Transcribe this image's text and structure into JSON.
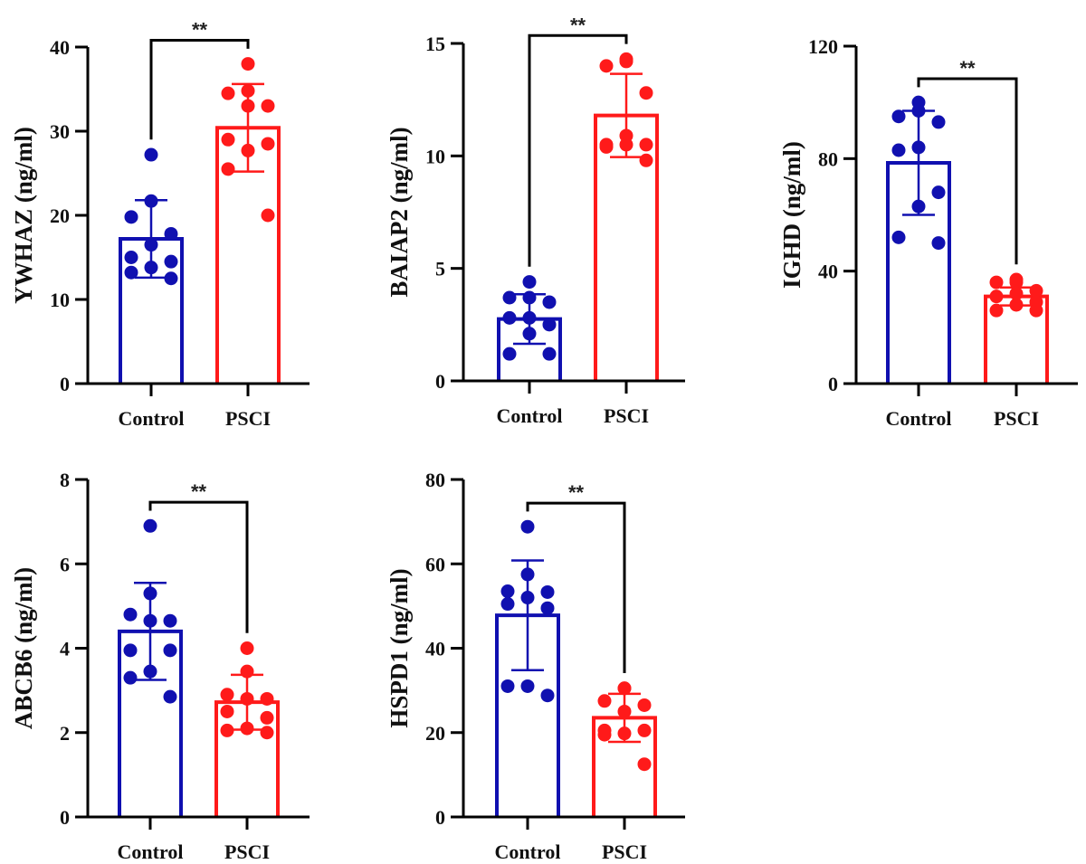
{
  "colors": {
    "control": "#1010b0",
    "psci": "#ff1a1a",
    "axis": "#000000"
  },
  "chart_data": [
    {
      "type": "bar",
      "ylabel": "YWHAZ (ng/ml)",
      "categories": [
        "Control",
        "PSCI"
      ],
      "ylim": [
        0,
        40
      ],
      "yticks": [
        "0",
        "10",
        "20",
        "30",
        "40"
      ],
      "significance": "**",
      "series": [
        {
          "name": "Control",
          "mean": 17.2,
          "sd": 4.6,
          "points": [
            27.2,
            21.7,
            19.8,
            17.8,
            16.5,
            15.0,
            14.5,
            13.8,
            13.2,
            12.5
          ]
        },
        {
          "name": "PSCI",
          "mean": 30.4,
          "sd": 5.2,
          "points": [
            38.0,
            34.8,
            34.5,
            33.0,
            33.0,
            29.0,
            28.5,
            27.7,
            25.5,
            20.0
          ]
        }
      ]
    },
    {
      "type": "bar",
      "ylabel": "BAIAP2 (ng/ml)",
      "categories": [
        "Control",
        "PSCI"
      ],
      "ylim": [
        0,
        15
      ],
      "yticks": [
        "0",
        "5",
        "10",
        "15"
      ],
      "significance": "**",
      "series": [
        {
          "name": "Control",
          "mean": 2.75,
          "sd": 1.1,
          "points": [
            4.4,
            3.7,
            3.7,
            3.5,
            2.8,
            2.8,
            2.5,
            2.1,
            1.2,
            1.2
          ]
        },
        {
          "name": "PSCI",
          "mean": 11.8,
          "sd": 1.85,
          "points": [
            14.3,
            14.2,
            14.0,
            12.8,
            10.9,
            10.5,
            10.5,
            10.5,
            10.4,
            9.8
          ]
        }
      ]
    },
    {
      "type": "bar",
      "ylabel": "IGHD (ng/ml)",
      "categories": [
        "Control",
        "PSCI"
      ],
      "ylim": [
        0,
        120
      ],
      "yticks": [
        "0",
        "40",
        "80",
        "120"
      ],
      "significance": "**",
      "series": [
        {
          "name": "Control",
          "mean": 78.5,
          "sd": 18.5,
          "points": [
            100,
            97,
            95,
            93,
            84,
            83,
            68,
            63,
            52,
            50
          ]
        },
        {
          "name": "PSCI",
          "mean": 31.0,
          "sd": 3.2,
          "points": [
            37,
            36,
            36,
            33,
            32,
            31,
            29,
            28,
            26,
            26
          ]
        }
      ]
    },
    {
      "type": "bar",
      "ylabel": "ABCB6 (ng/ml)",
      "categories": [
        "Control",
        "PSCI"
      ],
      "ylim": [
        0,
        8
      ],
      "yticks": [
        "0",
        "2",
        "4",
        "6",
        "8"
      ],
      "significance": "**",
      "series": [
        {
          "name": "Control",
          "mean": 4.4,
          "sd": 1.15,
          "points": [
            6.9,
            5.3,
            4.8,
            4.65,
            4.65,
            3.95,
            3.95,
            3.45,
            3.3,
            2.85
          ]
        },
        {
          "name": "PSCI",
          "mean": 2.72,
          "sd": 0.65,
          "points": [
            4.0,
            3.45,
            2.9,
            2.8,
            2.8,
            2.5,
            2.35,
            2.1,
            2.05,
            2.0
          ]
        }
      ]
    },
    {
      "type": "bar",
      "ylabel": "HSPD1 (ng/ml)",
      "categories": [
        "Control",
        "PSCI"
      ],
      "ylim": [
        0,
        80
      ],
      "yticks": [
        "0",
        "20",
        "40",
        "60",
        "80"
      ],
      "significance": "**",
      "series": [
        {
          "name": "Control",
          "mean": 47.8,
          "sd": 13.0,
          "points": [
            68.8,
            57.5,
            53.5,
            53.3,
            52.0,
            50.5,
            49.5,
            31.0,
            31.0,
            28.8
          ]
        },
        {
          "name": "PSCI",
          "mean": 23.5,
          "sd": 5.7,
          "points": [
            30.5,
            30.5,
            27.5,
            26.5,
            25.0,
            20.5,
            20.5,
            19.8,
            19.5,
            12.5
          ]
        }
      ]
    }
  ]
}
